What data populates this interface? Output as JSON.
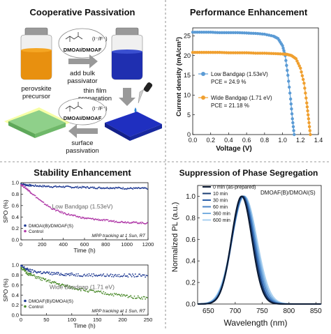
{
  "panels": {
    "tl": {
      "title": "Cooperative Passivation",
      "labels": {
        "dmoai_top": "DMOAI/DMOAF",
        "ion_top": "(I⁻/F⁻)",
        "add_bulk1": "add bulk",
        "add_bulk2": "passivator",
        "perovskite1": "perovskite",
        "perovskite2": "precursor",
        "thin1": "thin film",
        "thin2": "preparation",
        "dmoai_bot": "DMOAI/DMOAF",
        "ion_bot": "(I⁻/F⁻)",
        "surface1": "surface",
        "surface2": "passivation"
      }
    },
    "tr": {
      "title": "Performance Enhancement",
      "chart_data": {
        "type": "line",
        "xlabel": "Voltage (V)",
        "ylabel": "Current density (mA/cm²)",
        "xlim": [
          0.0,
          1.4
        ],
        "ylim": [
          0,
          27
        ],
        "xticks": [
          "0.0",
          "0.2",
          "0.4",
          "0.6",
          "0.8",
          "1.0",
          "1.2",
          "1.4"
        ],
        "yticks": [
          "0",
          "5",
          "10",
          "15",
          "20",
          "25"
        ],
        "series": [
          {
            "name": "Low Bandgap (1.53eV)",
            "pce": "PCE = 24.9 %",
            "color": "#5b9bd5",
            "x": [
              0,
              0.1,
              0.2,
              0.3,
              0.4,
              0.5,
              0.6,
              0.7,
              0.8,
              0.9,
              0.95,
              1.0,
              1.03,
              1.06,
              1.09,
              1.11,
              1.13
            ],
            "y": [
              25.9,
              25.9,
              25.9,
              25.8,
              25.8,
              25.8,
              25.7,
              25.6,
              25.4,
              24.9,
              24.3,
              22.5,
              20,
              15,
              9,
              4,
              0
            ]
          },
          {
            "name": "Wide Bandgap (1.71 eV)",
            "pce": "PCE = 21.18 %",
            "color": "#f0a030",
            "x": [
              0,
              0.1,
              0.2,
              0.3,
              0.4,
              0.5,
              0.6,
              0.7,
              0.8,
              0.9,
              1.0,
              1.05,
              1.1,
              1.15,
              1.2,
              1.24,
              1.27,
              1.29,
              1.31
            ],
            "y": [
              20.8,
              20.8,
              20.8,
              20.8,
              20.7,
              20.7,
              20.7,
              20.6,
              20.6,
              20.5,
              20.4,
              20.3,
              20.0,
              19.2,
              16.8,
              13,
              8,
              4,
              0
            ]
          }
        ]
      }
    },
    "bl": {
      "title": "Stability Enhancement",
      "charts": [
        {
          "type": "scatter",
          "xlabel": "Time (h)",
          "ylabel": "SPO (%)",
          "xlim": [
            0,
            1200
          ],
          "ylim": [
            0,
            1.0
          ],
          "xticks": [
            "0",
            "200",
            "400",
            "600",
            "800",
            "1000",
            "1200"
          ],
          "yticks": [
            "0.0",
            "0.2",
            "0.4",
            "0.6",
            "0.8",
            "1.0"
          ],
          "annotation": "Low Bandgap (1.53eV)",
          "note": "MPP tracking at 1 Sun, RT",
          "series": [
            {
              "name": "DMOAI(B)/DMOAF(S)",
              "color": "#1f3a93",
              "x": [
                0,
                50,
                100,
                200,
                300,
                400,
                500,
                600,
                700,
                800,
                900,
                1000,
                1100,
                1200
              ],
              "y": [
                0.98,
                0.96,
                0.95,
                0.94,
                0.93,
                0.93,
                0.92,
                0.92,
                0.91,
                0.91,
                0.91,
                0.9,
                0.9,
                0.9
              ]
            },
            {
              "name": "Control",
              "color": "#b03aa8",
              "x": [
                0,
                50,
                100,
                200,
                300,
                400,
                500,
                600,
                700,
                800,
                900,
                1000,
                1100,
                1200
              ],
              "y": [
                0.97,
                0.9,
                0.82,
                0.66,
                0.54,
                0.47,
                0.42,
                0.38,
                0.36,
                0.34,
                0.32,
                0.31,
                0.3,
                0.29
              ]
            }
          ]
        },
        {
          "type": "scatter",
          "xlabel": "Time (h)",
          "ylabel": "SPO (%)",
          "xlim": [
            0,
            250
          ],
          "ylim": [
            0,
            1.0
          ],
          "xticks": [
            "0",
            "50",
            "100",
            "150",
            "200",
            "250"
          ],
          "yticks": [
            "0.0",
            "0.2",
            "0.4",
            "0.6",
            "0.8",
            "1.0"
          ],
          "annotation": "Wide Bandgap (1.71 eV)",
          "note": "MPP tracking at 1 Sun, RT",
          "series": [
            {
              "name": "DMOAF(B)/DMOAI(S)",
              "color": "#1f3a93",
              "x": [
                0,
                10,
                20,
                40,
                60,
                80,
                100,
                125,
                150,
                175,
                200,
                225,
                250
              ],
              "y": [
                0.98,
                0.92,
                0.88,
                0.85,
                0.83,
                0.82,
                0.81,
                0.8,
                0.8,
                0.79,
                0.79,
                0.79,
                0.78
              ]
            },
            {
              "name": "Control",
              "color": "#4a8a2a",
              "x": [
                0,
                10,
                20,
                40,
                60,
                80,
                100,
                125,
                150,
                175,
                200,
                225,
                250
              ],
              "y": [
                0.96,
                0.85,
                0.8,
                0.72,
                0.66,
                0.6,
                0.55,
                0.5,
                0.46,
                0.42,
                0.39,
                0.36,
                0.34
              ]
            }
          ]
        }
      ]
    },
    "br": {
      "title": "Suppression of Phase Segregation",
      "chart_data": {
        "type": "line",
        "xlabel": "Wavelength (nm)",
        "ylabel": "Normalized PL (a.u.)",
        "xlim": [
          630,
          860
        ],
        "ylim": [
          0,
          1.1
        ],
        "xticks": [
          "650",
          "700",
          "750",
          "800",
          "850"
        ],
        "yticks": [
          "0.0",
          "0.2",
          "0.4",
          "0.6",
          "0.8",
          "1.0"
        ],
        "annotation": "DMOAF(B)/DMOAI(S)",
        "series": [
          {
            "name": "0 min (as-prepared)",
            "color": "#0b1a33",
            "center": 712,
            "sigma": 19
          },
          {
            "name": "10 min",
            "color": "#1a3d73",
            "center": 713,
            "sigma": 19.5
          },
          {
            "name": "30 min",
            "color": "#2b5fa8",
            "center": 714,
            "sigma": 20
          },
          {
            "name": "60 min",
            "color": "#4c86c8",
            "center": 715,
            "sigma": 21
          },
          {
            "name": "360 min",
            "color": "#78aee0",
            "center": 716,
            "sigma": 22
          },
          {
            "name": "600 min",
            "color": "#a9d0f0",
            "center": 717,
            "sigma": 23
          }
        ]
      }
    }
  }
}
